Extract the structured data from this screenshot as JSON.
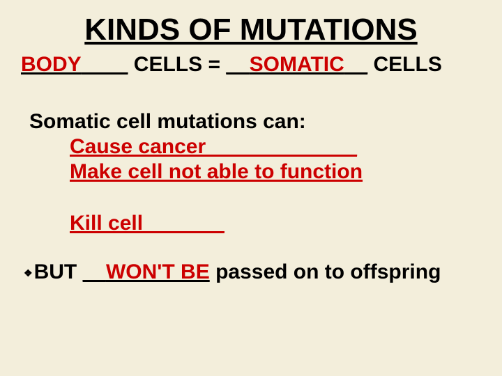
{
  "title": "KINDS OF MUTATIONS",
  "line1": {
    "blank1_fill": "BODY",
    "blank1_pad": "____",
    "mid": " CELLS = ",
    "blank2_lead": "__",
    "blank2_fill": "SOMATIC",
    "blank2_pad": "__",
    "suffix": " CELLS"
  },
  "intro": "Somatic cell mutations can:",
  "items": [
    "Cause cancer_____________",
    "Make cell not able to function",
    "Kill cell_______"
  ],
  "last": {
    "bullet": "❖",
    "prefix": "BUT ",
    "blank_lead": "__",
    "fill": "WON'T BE",
    "suffix": " passed on to offspring"
  },
  "colors": {
    "accent": "#cc0000",
    "text": "#000000",
    "bg": "#f3eedb"
  }
}
